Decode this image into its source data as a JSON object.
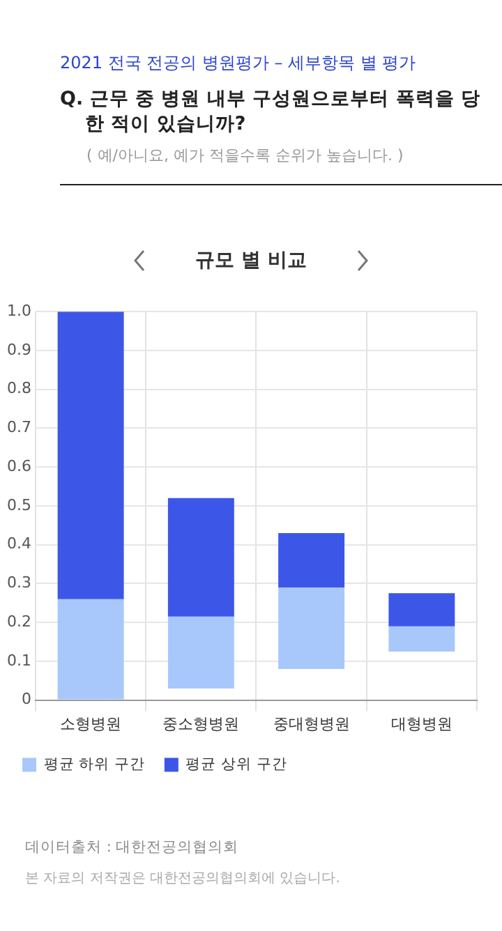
{
  "chart_data": {
    "type": "bar",
    "subtitle": "2021 전국 전공의 병원평가 – 세부항목 별 평가",
    "title": "Q. 근무 중 병원 내부 구성원으로부터 폭력을 당한 적이 있습니까?",
    "annotations": [
      "( 예/아니요, 예가 적을수록 순위가 높습니다. )",
      "규모 별 비교",
      "데이터출처 : 대한전공의협의회",
      "본 자료의 저작권은 대한전공의협의회에 있습니다."
    ],
    "categories": [
      "소형병원",
      "중소형병원",
      "중대형병원",
      "대형병원"
    ],
    "series": [
      {
        "name": "평균 하위 구간",
        "color": "#a8c8fc",
        "base": [
          0,
          0.03,
          0.08,
          0.125
        ],
        "values": [
          0.26,
          0.185,
          0.21,
          0.065
        ]
      },
      {
        "name": "평균 상위 구간",
        "color": "#3c57e8",
        "base": [
          0.26,
          0.215,
          0.29,
          0.19
        ],
        "values": [
          0.74,
          0.305,
          0.14,
          0.085
        ]
      }
    ],
    "ylim": [
      0,
      1
    ],
    "yticks": [
      0,
      {
        "value": 0.1,
        "label": "0.1"
      },
      {
        "value": 0.2,
        "label": "0.2"
      },
      {
        "value": 0.3,
        "label": "0.3"
      },
      {
        "value": 0.4,
        "label": "0.4"
      },
      {
        "value": 0.5,
        "label": "0.5"
      },
      {
        "value": 0.6,
        "label": "0.6"
      },
      {
        "value": 0.7,
        "label": "0.7"
      },
      {
        "value": 0.8,
        "label": "0.8"
      },
      {
        "value": 0.9,
        "label": "0.9"
      },
      {
        "value": 1,
        "label": "1.0"
      }
    ],
    "grid": true,
    "legend": "bottom left"
  }
}
